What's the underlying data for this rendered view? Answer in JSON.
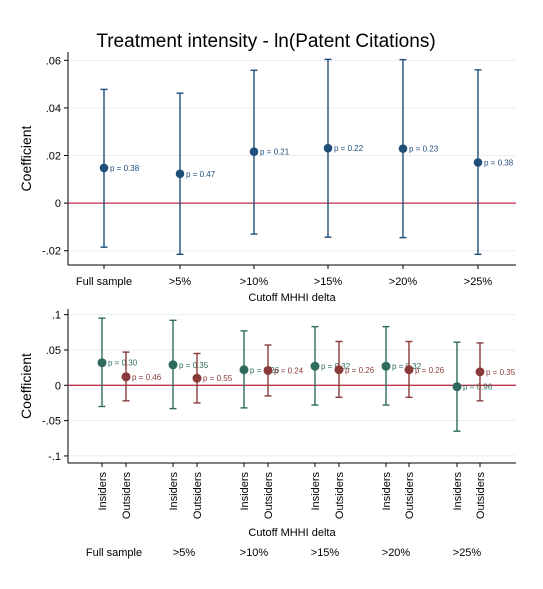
{
  "chart_data": [
    {
      "type": "scatter",
      "title": "Treatment intensity - ln(Patent Citations)",
      "xlabel": "Cutoff MHHI delta",
      "ylabel": "Coefficient",
      "categories": [
        "Full sample",
        ">5%",
        ">10%",
        ">15%",
        ">20%",
        ">25%"
      ],
      "ylim": [
        -0.026,
        0.0635
      ],
      "yticks": [
        ".06",
        ".04",
        ".02",
        "0",
        "-.02"
      ],
      "ytick_values": [
        0.06,
        0.04,
        0.02,
        0,
        -0.02
      ],
      "reference_line": 0,
      "grid": true,
      "series": [
        {
          "color": "#1f4e79",
          "estimates": [
            0.0148,
            0.0123,
            0.0216,
            0.0231,
            0.0229,
            0.0171
          ],
          "ci_low": [
            -0.0185,
            -0.0215,
            -0.013,
            -0.0143,
            -0.0145,
            -0.0215
          ],
          "ci_high": [
            0.0478,
            0.0462,
            0.0558,
            0.0604,
            0.0603,
            0.056
          ],
          "pvalues": [
            "p = 0.38",
            "p = 0.47",
            "p = 0.21",
            "p = 0.22",
            "p = 0.23",
            "p = 0.38"
          ]
        }
      ]
    },
    {
      "type": "scatter",
      "xlabel": "Cutoff MHHI delta",
      "ylabel": "Coefficient",
      "categories": [
        "Full sample",
        ">5%",
        ">10%",
        ">15%",
        ">20%",
        ">25%"
      ],
      "subcategories": [
        "Insiders",
        "Outsiders"
      ],
      "ylim": [
        -0.11,
        0.108
      ],
      "yticks": [
        ".1",
        ".05",
        "0",
        "-.05",
        "-.1"
      ],
      "ytick_values": [
        0.1,
        0.05,
        0,
        -0.05,
        -0.1
      ],
      "reference_line": 0,
      "grid": true,
      "series": [
        {
          "name": "Insiders",
          "color": "#2e6b5e",
          "estimates": [
            0.032,
            0.029,
            0.022,
            0.027,
            0.027,
            -0.002
          ],
          "ci_low": [
            -0.03,
            -0.033,
            -0.032,
            -0.028,
            -0.028,
            -0.065
          ],
          "ci_high": [
            0.095,
            0.092,
            0.077,
            0.083,
            0.083,
            0.061
          ],
          "pvalues": [
            "p = 0.30",
            "p = 0.35",
            "p = 0.26",
            "p = 0.32",
            "p = 0.32",
            "p = 0.96"
          ]
        },
        {
          "name": "Outsiders",
          "color": "#8b3a3a",
          "estimates": [
            0.012,
            0.01,
            0.021,
            0.022,
            0.022,
            0.019
          ],
          "ci_low": [
            -0.022,
            -0.025,
            -0.015,
            -0.017,
            -0.017,
            -0.022
          ],
          "ci_high": [
            0.047,
            0.045,
            0.057,
            0.062,
            0.062,
            0.06
          ],
          "pvalues": [
            "p = 0.46",
            "p = 0.55",
            "p = 0.24",
            "p = 0.26",
            "p = 0.26",
            "p = 0.35"
          ]
        }
      ]
    }
  ]
}
